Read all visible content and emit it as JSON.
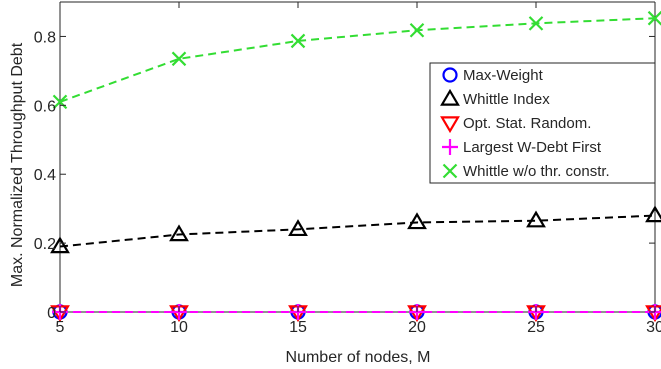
{
  "chart_data": {
    "type": "line",
    "title": "",
    "xlabel": "Number of nodes, M",
    "ylabel": "Max. Normalized Throughput Debt",
    "x": [
      5,
      10,
      15,
      20,
      25,
      30
    ],
    "xlim": [
      5,
      30
    ],
    "ylim": [
      0,
      0.9
    ],
    "xticks": [
      5,
      10,
      15,
      20,
      25,
      30
    ],
    "xtick_labels": [
      "5",
      "10",
      "15",
      "20",
      "25",
      "30"
    ],
    "yticks": [
      0,
      0.2,
      0.4,
      0.6,
      0.8
    ],
    "ytick_labels": [
      "0",
      "0.2",
      "0.4",
      "0.6",
      "0.8"
    ],
    "grid": false,
    "legend_position": "right",
    "series": [
      {
        "name": "Max-Weight",
        "color": "#0000ff",
        "marker": "circle",
        "values": [
          0,
          0,
          0,
          0,
          0,
          0
        ]
      },
      {
        "name": "Whittle Index",
        "color": "#000000",
        "marker": "triangle-up",
        "values": [
          0.19,
          0.225,
          0.24,
          0.26,
          0.265,
          0.28
        ]
      },
      {
        "name": "Opt. Stat. Random.",
        "color": "#ff0000",
        "marker": "triangle-down",
        "values": [
          0,
          0,
          0,
          0,
          0,
          0
        ]
      },
      {
        "name": "Largest W-Debt First",
        "color": "#ff00ff",
        "marker": "plus",
        "values": [
          0,
          0,
          0,
          0,
          0,
          0
        ]
      },
      {
        "name": "Whittle w/o thr. constr.",
        "color": "#33dd33",
        "marker": "x",
        "values": [
          0.61,
          0.735,
          0.787,
          0.818,
          0.838,
          0.853
        ]
      }
    ]
  }
}
